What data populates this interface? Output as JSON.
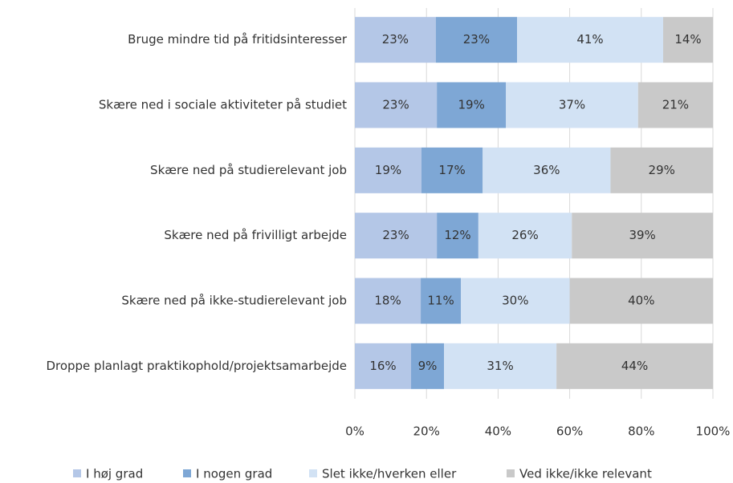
{
  "chart_data": {
    "type": "stacked_barh",
    "categories": [
      "Bruge mindre tid på fritidsinteresser",
      "Skære ned i sociale aktiviteter på studiet",
      "Skære ned på studierelevant job",
      "Skære ned på frivilligt arbejde",
      "Skære ned på ikke-studierelevant job",
      "Droppe planlagt praktikophold/projektsamarbejde"
    ],
    "series": [
      {
        "name": "I høj grad",
        "color": "#b4c7e7",
        "values": [
          22.6,
          22.9,
          18.6,
          22.9,
          18.4,
          15.7
        ],
        "value_labels": [
          "23%",
          "23%",
          "19%",
          "23%",
          "18%",
          "16%"
        ]
      },
      {
        "name": "I nogen grad",
        "color": "#7ea7d5",
        "values": [
          22.7,
          19.3,
          17.1,
          11.6,
          11.2,
          9.2
        ],
        "value_labels": [
          "23%",
          "19%",
          "17%",
          "12%",
          "11%",
          "9%"
        ]
      },
      {
        "name": "Slet ikke/hverken eller",
        "color": "#d2e2f4",
        "values": [
          40.8,
          36.9,
          35.7,
          26.1,
          30.4,
          31.4
        ],
        "value_labels": [
          "41%",
          "37%",
          "36%",
          "26%",
          "30%",
          "31%"
        ]
      },
      {
        "name": "Ved ikke/ikke relevant",
        "color": "#c9c9c9",
        "values": [
          13.9,
          20.9,
          28.6,
          39.4,
          40.0,
          43.7
        ],
        "value_labels": [
          "14%",
          "21%",
          "29%",
          "39%",
          "40%",
          "44%"
        ]
      }
    ],
    "xlim": [
      0,
      100
    ],
    "xticks": [
      {
        "value": 0,
        "label": "0%"
      },
      {
        "value": 20,
        "label": "20%"
      },
      {
        "value": 40,
        "label": "40%"
      },
      {
        "value": 60,
        "label": "60%"
      },
      {
        "value": 80,
        "label": "80%"
      },
      {
        "value": 100,
        "label": "100%"
      }
    ],
    "grid": true,
    "legend": "bottom"
  }
}
